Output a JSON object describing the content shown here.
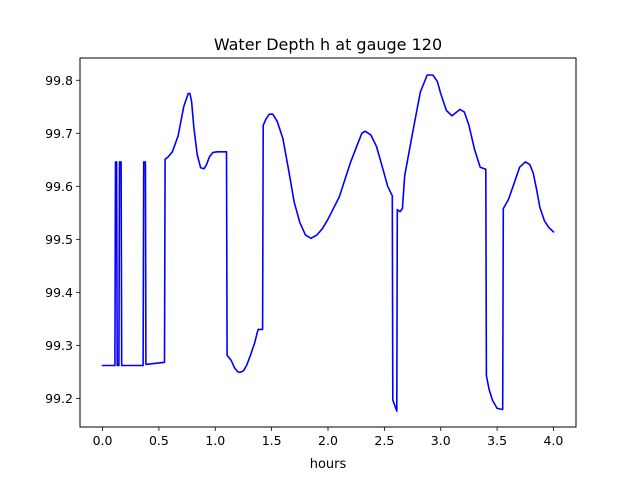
{
  "chart_data": {
    "type": "line",
    "title": "Water Depth h at gauge 120",
    "xlabel": "hours",
    "ylabel": "",
    "xlim": [
      -0.2,
      4.2
    ],
    "ylim": [
      99.146,
      99.842
    ],
    "xticks": [
      0.0,
      0.5,
      1.0,
      1.5,
      2.0,
      2.5,
      3.0,
      3.5,
      4.0
    ],
    "xtick_labels": [
      "0.0",
      "0.5",
      "1.0",
      "1.5",
      "2.0",
      "2.5",
      "3.0",
      "3.5",
      "4.0"
    ],
    "yticks": [
      99.2,
      99.3,
      99.4,
      99.5,
      99.6,
      99.7,
      99.8
    ],
    "ytick_labels": [
      "99.2",
      "99.3",
      "99.4",
      "99.5",
      "99.6",
      "99.7",
      "99.8"
    ],
    "grid": false,
    "legend": "none",
    "series": [
      {
        "color": "#0000ff",
        "x": [
          0.0,
          0.11,
          0.115,
          0.125,
          0.13,
          0.145,
          0.15,
          0.165,
          0.17,
          0.36,
          0.365,
          0.38,
          0.385,
          0.55,
          0.555,
          0.58,
          0.62,
          0.67,
          0.72,
          0.76,
          0.775,
          0.79,
          0.81,
          0.84,
          0.87,
          0.9,
          0.92,
          0.95,
          0.98,
          1.02,
          1.06,
          1.1,
          1.105,
          1.14,
          1.17,
          1.2,
          1.22,
          1.25,
          1.28,
          1.31,
          1.35,
          1.38,
          1.42,
          1.425,
          1.45,
          1.48,
          1.51,
          1.55,
          1.6,
          1.65,
          1.7,
          1.75,
          1.8,
          1.85,
          1.9,
          1.95,
          2.0,
          2.1,
          2.2,
          2.3,
          2.33,
          2.38,
          2.43,
          2.48,
          2.53,
          2.57,
          2.575,
          2.61,
          2.615,
          2.64,
          2.66,
          2.68,
          2.75,
          2.82,
          2.88,
          2.93,
          2.97,
          3.0,
          3.05,
          3.1,
          3.13,
          3.17,
          3.21,
          3.25,
          3.3,
          3.35,
          3.4,
          3.405,
          3.43,
          3.46,
          3.5,
          3.55,
          3.555,
          3.6,
          3.65,
          3.7,
          3.75,
          3.79,
          3.82,
          3.85,
          3.88,
          3.92,
          3.96,
          4.0
        ],
        "y": [
          99.262,
          99.262,
          99.646,
          99.646,
          99.262,
          99.262,
          99.646,
          99.646,
          99.262,
          99.262,
          99.646,
          99.646,
          99.264,
          99.268,
          99.651,
          99.655,
          99.665,
          99.695,
          99.75,
          99.775,
          99.775,
          99.76,
          99.71,
          99.66,
          99.635,
          99.633,
          99.64,
          99.656,
          99.664,
          99.665,
          99.665,
          99.665,
          99.281,
          99.272,
          99.258,
          99.25,
          99.249,
          99.252,
          99.263,
          99.28,
          99.305,
          99.33,
          99.33,
          99.715,
          99.727,
          99.736,
          99.736,
          99.722,
          99.69,
          99.632,
          99.57,
          99.532,
          99.508,
          99.502,
          99.508,
          99.52,
          99.538,
          99.58,
          99.645,
          99.7,
          99.704,
          99.697,
          99.675,
          99.638,
          99.6,
          99.582,
          99.197,
          99.176,
          99.556,
          99.552,
          99.558,
          99.62,
          99.7,
          99.778,
          99.81,
          99.81,
          99.798,
          99.775,
          99.743,
          99.733,
          99.738,
          99.745,
          99.74,
          99.715,
          99.67,
          99.636,
          99.632,
          99.243,
          99.216,
          99.196,
          99.181,
          99.179,
          99.558,
          99.575,
          99.605,
          99.636,
          99.646,
          99.641,
          99.625,
          99.595,
          99.56,
          99.535,
          99.522,
          99.514
        ]
      }
    ]
  }
}
